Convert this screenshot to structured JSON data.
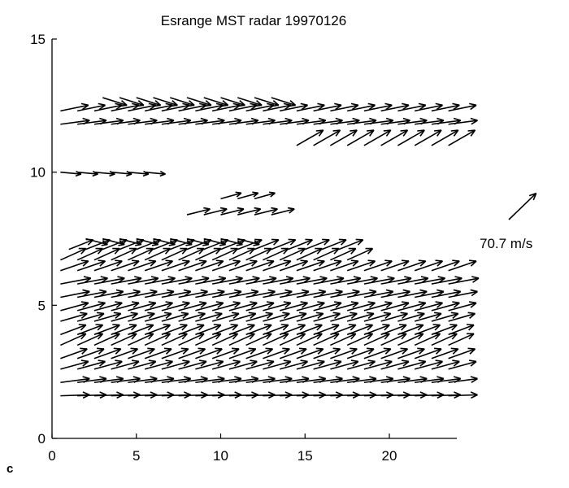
{
  "chart_data": {
    "type": "quiver",
    "title": "Esrange MST radar 19970126",
    "panel_label": "c",
    "xlabel": "",
    "ylabel": "",
    "xlim": [
      0,
      24
    ],
    "ylim": [
      0,
      15
    ],
    "xticks": [
      0,
      5,
      10,
      15,
      20
    ],
    "yticks": [
      0,
      5,
      10,
      15
    ],
    "color": "#000000",
    "reference_arrow": {
      "label": "70.7 m/s",
      "u": 50,
      "v": 50
    },
    "vector_scale_units_per_mps": 0.036,
    "levels": [
      {
        "y": 1.6,
        "x": [
          0.5,
          23.5
        ],
        "u": 48,
        "v": 1
      },
      {
        "y": 2.1,
        "x": [
          0.5,
          23.5
        ],
        "u": 48,
        "v": 4
      },
      {
        "y": 2.6,
        "x": [
          0.5,
          23.5
        ],
        "u": 46,
        "v": 8
      },
      {
        "y": 3.0,
        "x": [
          0.5,
          23.5
        ],
        "u": 44,
        "v": 10
      },
      {
        "y": 3.5,
        "x": [
          0.5,
          23.5
        ],
        "u": 42,
        "v": 12
      },
      {
        "y": 3.9,
        "x": [
          0.5,
          23.5
        ],
        "u": 42,
        "v": 10
      },
      {
        "y": 4.4,
        "x": [
          0.5,
          23.5
        ],
        "u": 44,
        "v": 8
      },
      {
        "y": 4.8,
        "x": [
          0.5,
          23.5
        ],
        "u": 46,
        "v": 8
      },
      {
        "y": 5.3,
        "x": [
          0.5,
          23.5
        ],
        "u": 48,
        "v": 6
      },
      {
        "y": 5.8,
        "x": [
          0.5,
          23.5
        ],
        "u": 50,
        "v": 6
      },
      {
        "y": 6.3,
        "x": [
          0.5,
          23.5
        ],
        "u": 46,
        "v": 10
      },
      {
        "y": 6.7,
        "x": [
          0.5,
          18.0
        ],
        "u": 42,
        "v": 12
      },
      {
        "y": 7.1,
        "x": [
          1.0,
          17.5
        ],
        "u": 40,
        "v": 10
      },
      {
        "y": 7.5,
        "x": [
          2.0,
          11.0
        ],
        "u": 36,
        "v": -6
      },
      {
        "y": 8.4,
        "x": [
          8.0,
          13.0
        ],
        "u": 38,
        "v": 6
      },
      {
        "y": 9.0,
        "x": [
          10.0,
          12.5
        ],
        "u": 34,
        "v": 6
      },
      {
        "y": 10.0,
        "x": [
          0.5,
          5.5
        ],
        "u": 34,
        "v": -2
      },
      {
        "y": 11.0,
        "x": [
          14.5,
          23.5
        ],
        "u": 44,
        "v": 16
      },
      {
        "y": 11.8,
        "x": [
          0.5,
          23.5
        ],
        "u": 48,
        "v": 4
      },
      {
        "y": 12.3,
        "x": [
          0.5,
          23.5
        ],
        "u": 46,
        "v": 6
      },
      {
        "y": 12.8,
        "x": [
          3.0,
          13.0
        ],
        "u": 40,
        "v": -8
      }
    ]
  }
}
